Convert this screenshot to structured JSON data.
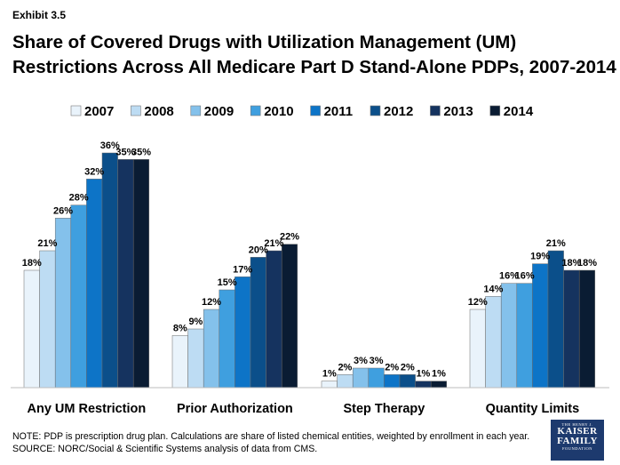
{
  "exhibit_label": "Exhibit 3.5",
  "title_line1": "Share of Covered Drugs with Utilization Management (UM)",
  "title_line2": "Restrictions Across All Medicare Part D Stand-Alone PDPs, 2007-2014",
  "note_line": "NOTE: PDP is prescription drug plan. Calculations are share of listed chemical entities, weighted by enrollment in each year.",
  "source_line": "SOURCE: NORC/Social & Scientific Systems analysis of data from CMS.",
  "logo": {
    "top": "THE HENRY J.",
    "line1": "KAISER",
    "line2": "FAMILY",
    "bottom": "FOUNDATION"
  },
  "chart_data": {
    "type": "bar",
    "categories": [
      "Any UM Restriction",
      "Prior Authorization",
      "Step Therapy",
      "Quantity Limits"
    ],
    "series": [
      {
        "name": "2007",
        "color": "#e9f3fb",
        "values": [
          18,
          8,
          1,
          12
        ]
      },
      {
        "name": "2008",
        "color": "#bddcf3",
        "values": [
          21,
          9,
          2,
          14
        ]
      },
      {
        "name": "2009",
        "color": "#84c1eb",
        "values": [
          26,
          12,
          3,
          16
        ]
      },
      {
        "name": "2010",
        "color": "#3f9fdf",
        "values": [
          28,
          15,
          3,
          16
        ]
      },
      {
        "name": "2011",
        "color": "#0d74c7",
        "values": [
          32,
          17,
          2,
          19
        ]
      },
      {
        "name": "2012",
        "color": "#0b4f8a",
        "values": [
          36,
          20,
          2,
          21
        ]
      },
      {
        "name": "2013",
        "color": "#15335f",
        "values": [
          35,
          21,
          1,
          18
        ]
      },
      {
        "name": "2014",
        "color": "#0a1c33",
        "values": [
          35,
          22,
          1,
          18
        ]
      }
    ],
    "value_labels": [
      [
        "18%",
        "8%",
        "1%",
        "12%"
      ],
      [
        "21%",
        "9%",
        "2%",
        "14%"
      ],
      [
        "26%",
        "12%",
        "3%",
        "16%"
      ],
      [
        "28%",
        "15%",
        "3%",
        "16%"
      ],
      [
        "32%",
        "17%",
        "2%",
        "19%"
      ],
      [
        "36%",
        "20%",
        "2%",
        "21%"
      ],
      [
        "35%",
        "21%",
        "1%",
        "18%"
      ],
      [
        "35%",
        "22%",
        "1%",
        "18%"
      ]
    ],
    "ylim": [
      0,
      36
    ],
    "grid": false,
    "legend_position": "top"
  }
}
